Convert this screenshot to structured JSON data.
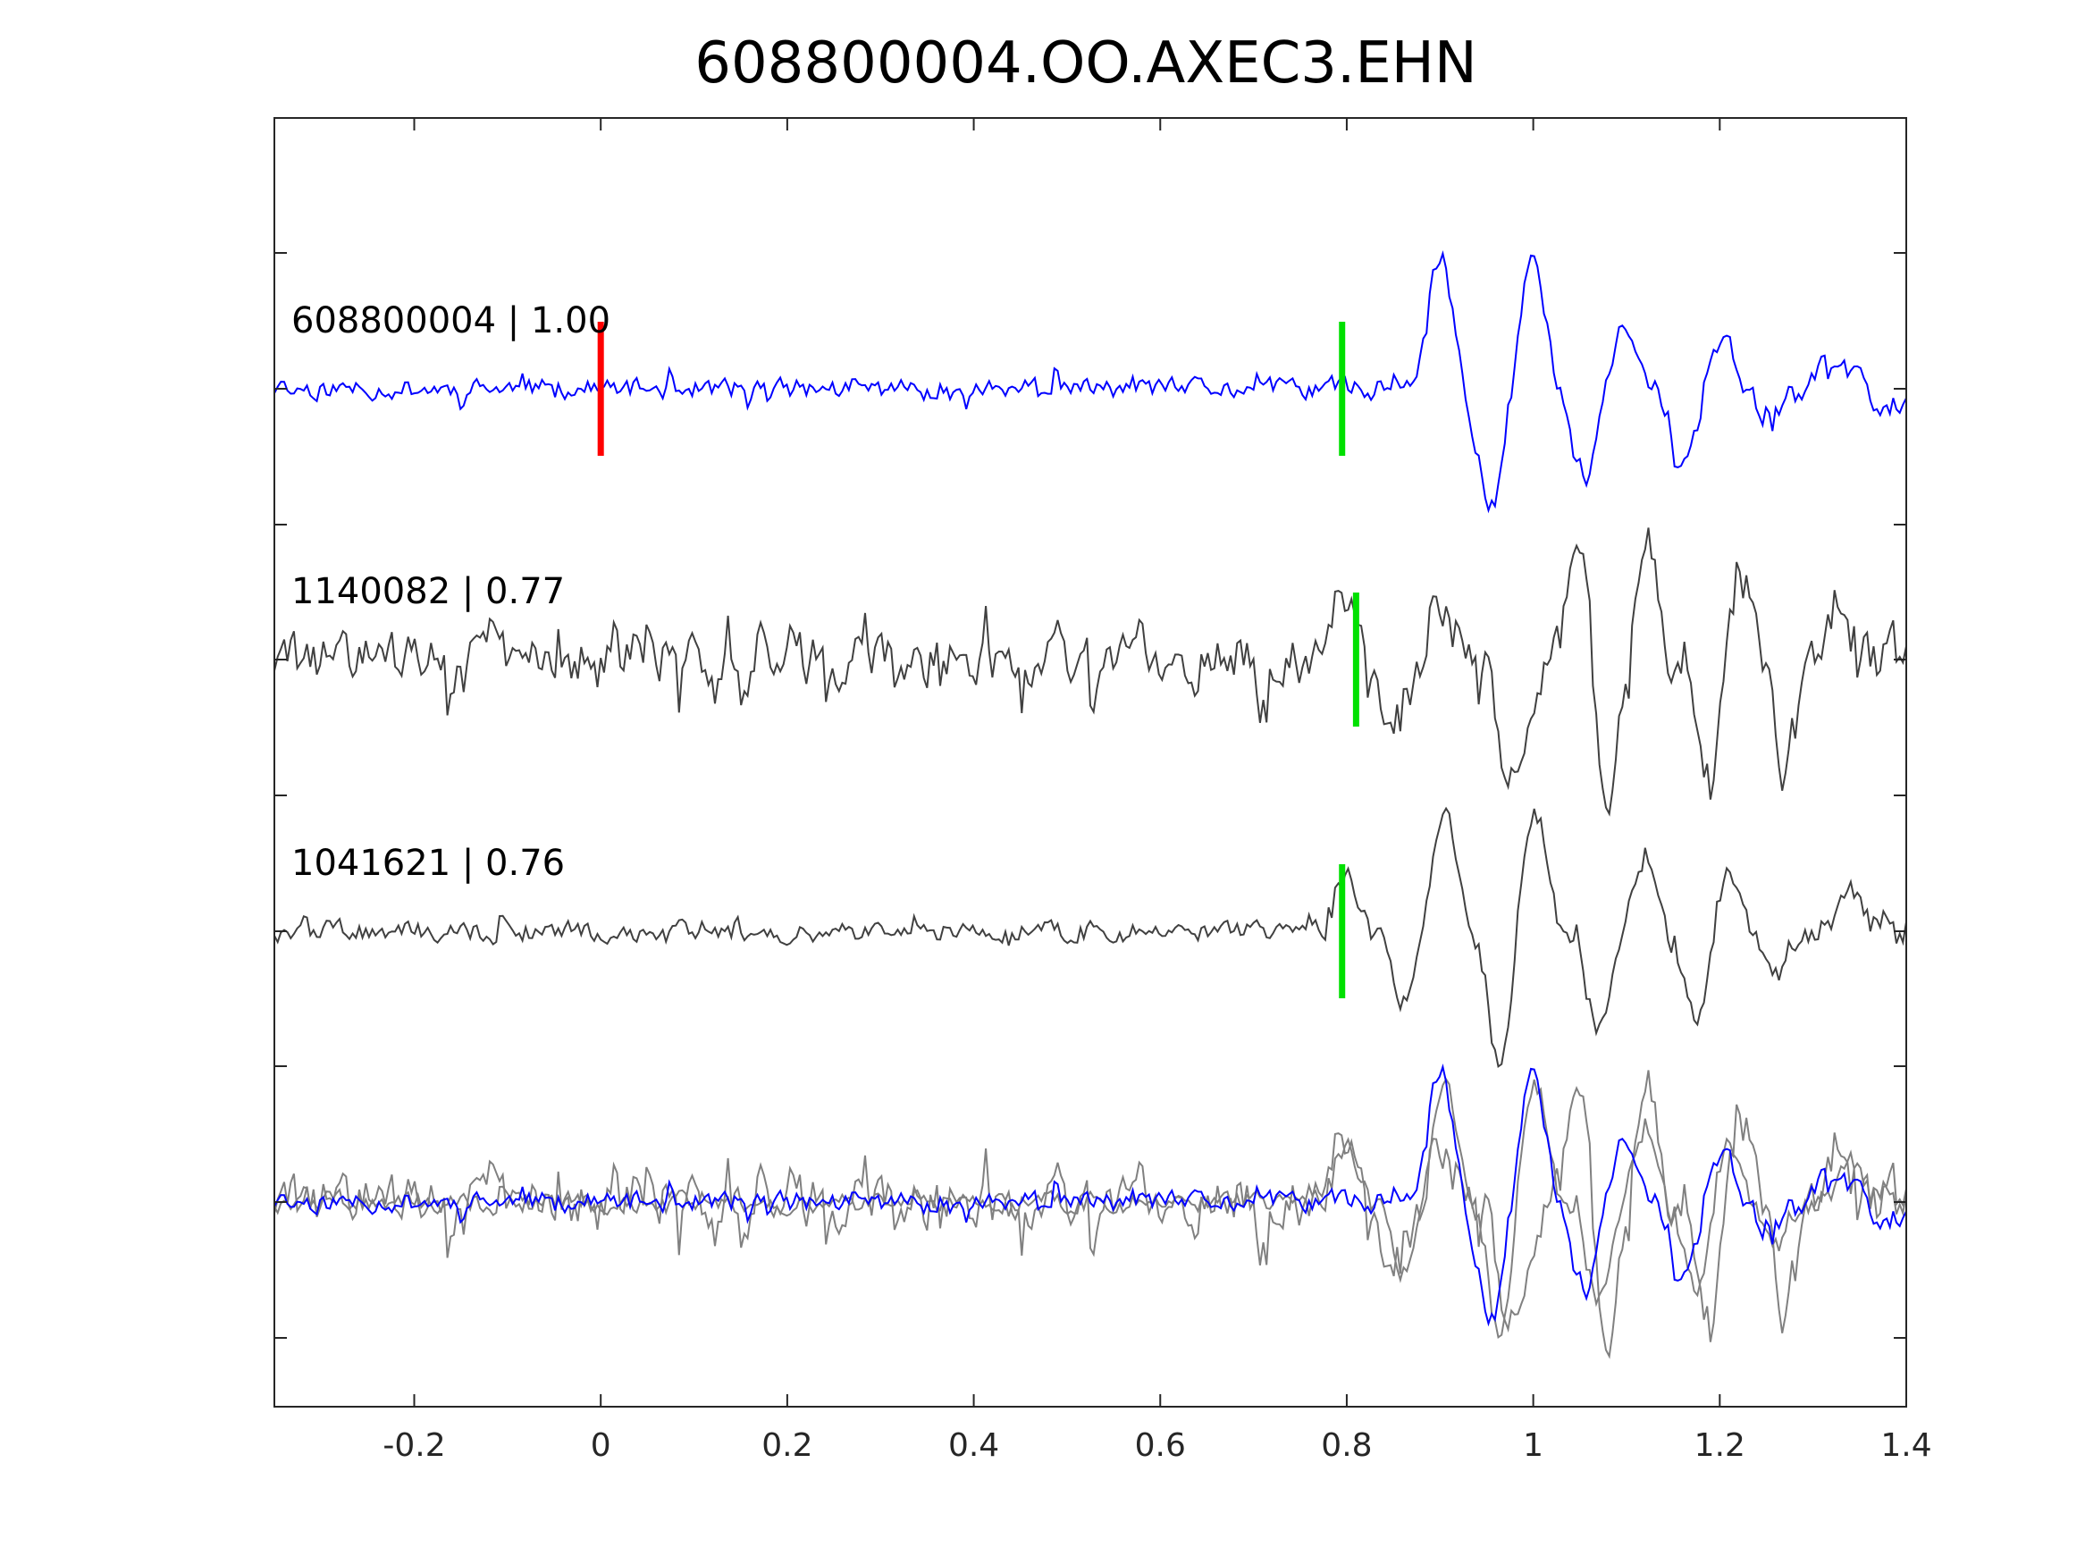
{
  "chart_data": {
    "type": "line",
    "title": "608800004.OO.AXEC3.EHN",
    "xlabel": "",
    "ylabel": "",
    "xlim": [
      -0.35,
      1.4
    ],
    "xticks": [
      -0.2,
      0,
      0.2,
      0.4,
      0.6,
      0.8,
      1,
      1.2,
      1.4
    ],
    "xtick_labels": [
      "-0.2",
      "0",
      "0.2",
      "0.4",
      "0.6",
      "0.8",
      "1",
      "1.2",
      "1.4"
    ],
    "grid": false,
    "legend": "none",
    "colors": {
      "main_trace": "#0000ff",
      "match_trace": "#404040",
      "overlay_match": "#808080",
      "pick_origin": "#ff0000",
      "pick_phase": "#00e000",
      "axes": "#262626"
    },
    "traces": [
      {
        "label": "608800004 | 1.00",
        "color": "#0000ff",
        "picks": [
          {
            "t": 0.0,
            "color": "#ff0000"
          },
          {
            "t": 0.795,
            "color": "#00e000"
          }
        ],
        "events": [
          {
            "t": 0.9,
            "a": 0.95
          },
          {
            "t": 0.955,
            "a": -0.9
          },
          {
            "t": 1.0,
            "a": 1.0
          },
          {
            "t": 1.055,
            "a": -0.62
          },
          {
            "t": 1.1,
            "a": 0.42
          },
          {
            "t": 1.16,
            "a": -0.6
          },
          {
            "t": 1.2,
            "a": 0.35
          },
          {
            "t": 1.25,
            "a": -0.2
          },
          {
            "t": 1.32,
            "a": 0.2
          },
          {
            "t": 1.38,
            "a": -0.2
          }
        ],
        "noise": 0.12,
        "spike_rate": 0.08,
        "onset": 0.78
      },
      {
        "label": "1140082 | 0.77",
        "color": "#404040",
        "picks": [
          {
            "t": 0.81,
            "color": "#00e000"
          }
        ],
        "events": [
          {
            "t": 0.795,
            "a": 0.5
          },
          {
            "t": 0.85,
            "a": -0.45
          },
          {
            "t": 0.905,
            "a": 0.3
          },
          {
            "t": 0.98,
            "a": -1.0
          },
          {
            "t": 1.05,
            "a": 0.85
          },
          {
            "t": 1.08,
            "a": -1.0
          },
          {
            "t": 1.12,
            "a": 1.0
          },
          {
            "t": 1.19,
            "a": -0.9
          },
          {
            "t": 1.22,
            "a": 0.8
          },
          {
            "t": 1.27,
            "a": -0.75
          },
          {
            "t": 1.33,
            "a": 0.3
          }
        ],
        "noise": 0.3,
        "spike_rate": 0.14,
        "onset": 0.78
      },
      {
        "label": "1041621 | 0.76",
        "color": "#404040",
        "picks": [
          {
            "t": 0.795,
            "color": "#00e000"
          }
        ],
        "events": [
          {
            "t": 0.8,
            "a": 0.4
          },
          {
            "t": 0.86,
            "a": -0.5
          },
          {
            "t": 0.905,
            "a": 0.9
          },
          {
            "t": 0.965,
            "a": -1.0
          },
          {
            "t": 1.0,
            "a": 0.95
          },
          {
            "t": 1.07,
            "a": -0.75
          },
          {
            "t": 1.12,
            "a": 0.55
          },
          {
            "t": 1.175,
            "a": -0.6
          },
          {
            "t": 1.21,
            "a": 0.48
          },
          {
            "t": 1.26,
            "a": -0.35
          },
          {
            "t": 1.34,
            "a": 0.3
          }
        ],
        "noise": 0.12,
        "spike_rate": 0.06,
        "onset": 0.78
      }
    ],
    "overlay": {
      "description_visible": false,
      "traces_combined": [
        "608800004 | 1.00",
        "1140082 | 0.77",
        "1041621 | 0.76"
      ]
    }
  }
}
